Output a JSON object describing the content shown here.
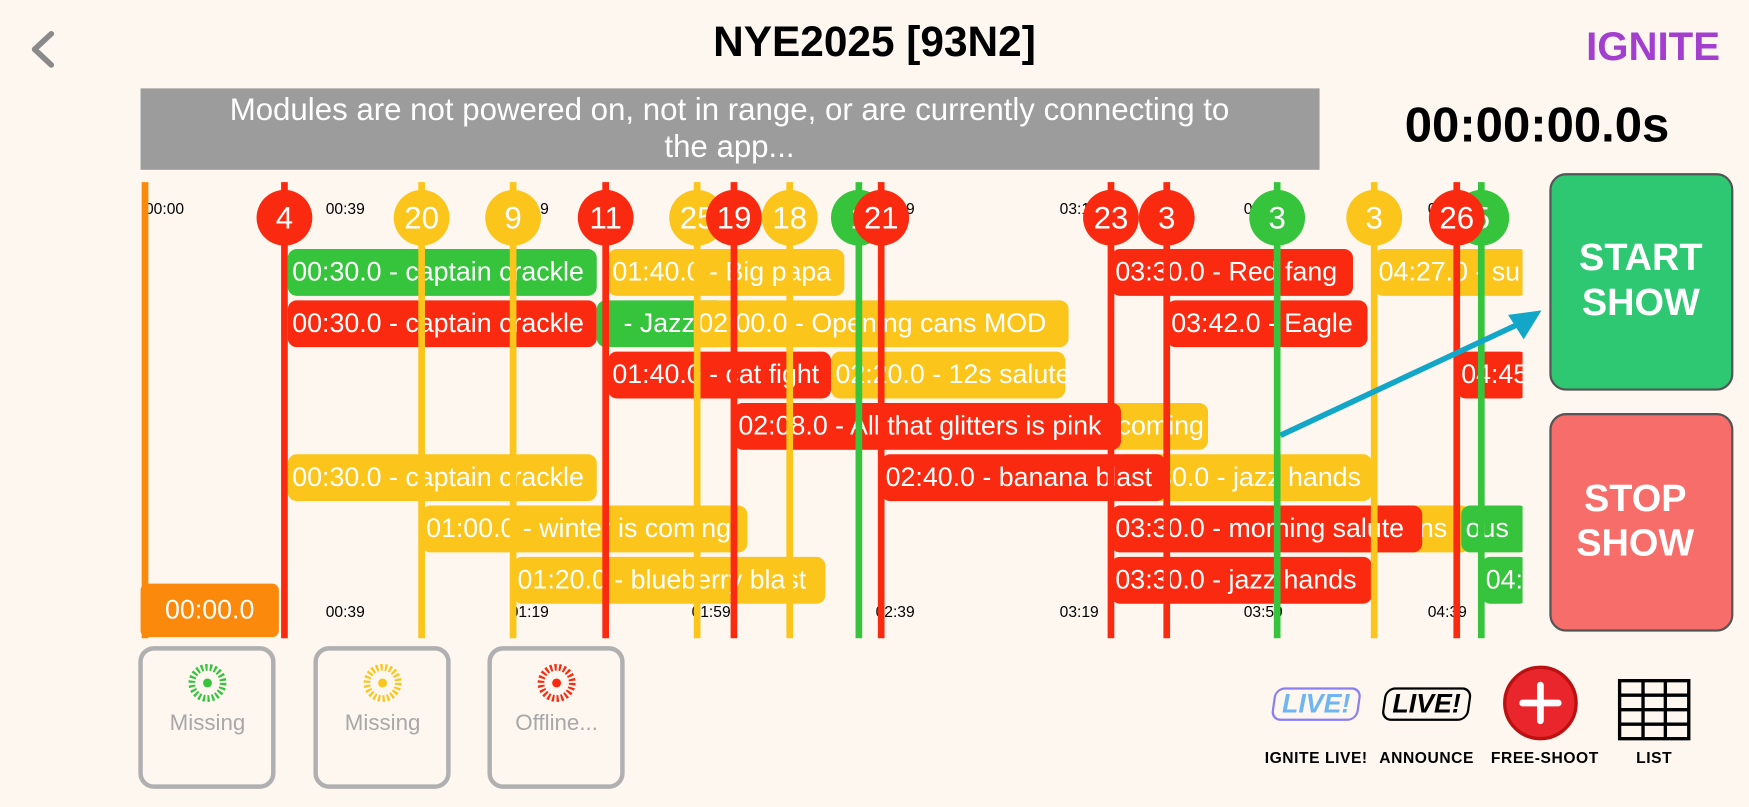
{
  "header": {
    "title": "NYE2025 [93N2]",
    "logo": "IGNITE"
  },
  "banner": {
    "lines": [
      "Modules are not powered on, not in range, or are currently connecting to",
      "the app..."
    ]
  },
  "timer": "00:00:00.0s",
  "timeline": {
    "ticks": [
      "00:00",
      "00:39",
      "01:19",
      "01:59",
      "02:39",
      "03:19",
      "03:59",
      "04:39"
    ],
    "cursor": "00:00.0",
    "cues": [
      {
        "label": "4",
        "color": "#fa2a10"
      },
      {
        "label": "20",
        "color": "#fbc51c"
      },
      {
        "label": "9",
        "color": "#fbc51c"
      },
      {
        "label": "11",
        "color": "#fa2a10"
      },
      {
        "label": "25",
        "color": "#fbc51c"
      },
      {
        "label": "19",
        "color": "#fa2a10"
      },
      {
        "label": "18",
        "color": "#fbc51c"
      },
      {
        "label": "1",
        "color": "#35c43c"
      },
      {
        "label": "21",
        "color": "#fa2a10"
      },
      {
        "label": "23",
        "color": "#fa2a10"
      },
      {
        "label": "3",
        "color": "#fa2a10"
      },
      {
        "label": "3",
        "color": "#35c43c"
      },
      {
        "label": "3",
        "color": "#fbc51c"
      },
      {
        "label": "5",
        "color": "#35c43c"
      },
      {
        "label": "26",
        "color": "#fa2a10"
      }
    ],
    "events": [
      {
        "label": "00:30.0 - captain crackle",
        "color": "#35c43c"
      },
      {
        "label": "01:40.0 - Big papa",
        "color": "#fbc51c"
      },
      {
        "label": "03:30.0 - Red fang",
        "color": "#fa2a10"
      },
      {
        "label": "04:27.0 - su",
        "color": "#fbc51c"
      },
      {
        "label": "00:30.0 - captain crackle",
        "color": "#fa2a10"
      },
      {
        "label": "- Jazz",
        "color": "#35c43c"
      },
      {
        "label": "02:00.0 - Opening cans MOD",
        "color": "#fbc51c"
      },
      {
        "label": "03:42.0 - Eagle",
        "color": "#fa2a10"
      },
      {
        "label": "02:20.0 - 12s salute",
        "color": "#fbc51c"
      },
      {
        "label": "01:40.0 - cat fight",
        "color": "#fa2a10"
      },
      {
        "label": "04:45",
        "color": "#fa2a10"
      },
      {
        "label": "coming",
        "color": "#fbc51c"
      },
      {
        "label": "02:08.0 - All that glitters is pink",
        "color": "#fa2a10"
      },
      {
        "label": "00:30.0 - captain crackle",
        "color": "#fbc51c"
      },
      {
        "label": "03:30.0 - jazz hands",
        "color": "#fbc51c"
      },
      {
        "label": "02:40.0 - banana blast",
        "color": "#fa2a10"
      },
      {
        "label": "01:00.0 - winter is coming",
        "color": "#fbc51c"
      },
      {
        "label": "trans",
        "color": "#fbc51c"
      },
      {
        "label": "ous",
        "color": "#35c43c"
      },
      {
        "label": "03:30.0 - morning salute",
        "color": "#fa2a10"
      },
      {
        "label": "01:20.0 - blueberry blast",
        "color": "#fbc51c"
      },
      {
        "label": "03:30.0 - jazz hands",
        "color": "#fa2a10"
      },
      {
        "label": "04:",
        "color": "#35c43c"
      }
    ]
  },
  "controls": {
    "start": [
      "START",
      "SHOW"
    ],
    "stop": [
      "STOP",
      "SHOW"
    ]
  },
  "modules": [
    {
      "status": "Missing",
      "color": "#35c43c"
    },
    {
      "status": "Missing",
      "color": "#fbc51c"
    },
    {
      "status": "Offline...",
      "color": "#fa2a10"
    }
  ],
  "toolbar": {
    "icon_text": "LIVE!",
    "items": [
      "IGNITE LIVE!",
      "ANNOUNCE",
      "FREE-SHOOT",
      "LIST"
    ]
  }
}
